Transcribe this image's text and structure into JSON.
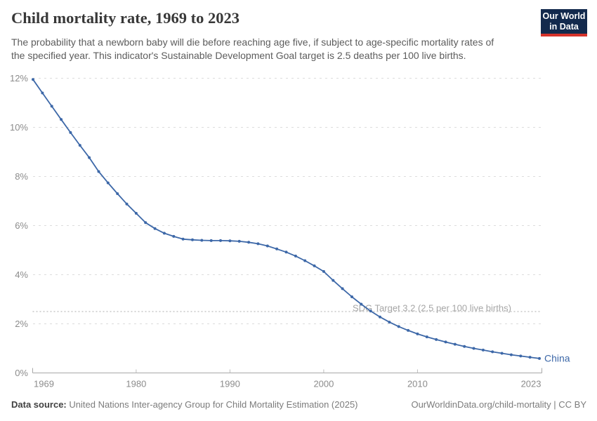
{
  "header": {
    "title": "Child mortality rate, 1969 to 2023",
    "subtitle_lines": [
      "The probability that a newborn baby will die before reaching age five, if subject to age-specific mortality rates of",
      "the specified year. This indicator's Sustainable Development Goal target is 2.5 deaths per 100 live births."
    ],
    "logo": {
      "line1": "Our World",
      "line2": "in Data",
      "bg_color": "#132a4d",
      "bar_color": "#d5332b"
    }
  },
  "chart_data": {
    "type": "line",
    "title": "Child mortality rate, 1969 to 2023",
    "xlabel": "",
    "ylabel": "",
    "xlim": [
      1969,
      2023
    ],
    "ylim": [
      0,
      12
    ],
    "xticks": [
      1969,
      1980,
      1990,
      2000,
      2010,
      2023
    ],
    "yticks": [
      0,
      2,
      4,
      6,
      8,
      10,
      12
    ],
    "ytick_suffix": "%",
    "grid": "dashed-horizontal",
    "legend_position": "end-of-line-label",
    "annotation": {
      "label": "SDG Target 3.2 (2.5 per 100 live births)",
      "value": 2.5,
      "style": "dotted"
    },
    "end_label": "China",
    "series": [
      {
        "name": "China",
        "color": "#3d68a8",
        "x": [
          1969,
          1970,
          1971,
          1972,
          1973,
          1974,
          1975,
          1976,
          1977,
          1978,
          1979,
          1980,
          1981,
          1982,
          1983,
          1984,
          1985,
          1986,
          1987,
          1988,
          1989,
          1990,
          1991,
          1992,
          1993,
          1994,
          1995,
          1996,
          1997,
          1998,
          1999,
          2000,
          2001,
          2002,
          2003,
          2004,
          2005,
          2006,
          2007,
          2008,
          2009,
          2010,
          2011,
          2012,
          2013,
          2014,
          2015,
          2016,
          2017,
          2018,
          2019,
          2020,
          2021,
          2022,
          2023
        ],
        "values": [
          11.95,
          11.4,
          10.86,
          10.32,
          9.79,
          9.27,
          8.77,
          8.2,
          7.74,
          7.3,
          6.88,
          6.5,
          6.12,
          5.88,
          5.69,
          5.56,
          5.45,
          5.42,
          5.4,
          5.39,
          5.39,
          5.38,
          5.36,
          5.32,
          5.26,
          5.17,
          5.05,
          4.92,
          4.76,
          4.57,
          4.36,
          4.13,
          3.77,
          3.43,
          3.1,
          2.8,
          2.52,
          2.28,
          2.07,
          1.89,
          1.73,
          1.59,
          1.47,
          1.36,
          1.26,
          1.17,
          1.08,
          1.0,
          0.93,
          0.86,
          0.8,
          0.74,
          0.69,
          0.64,
          0.59
        ]
      }
    ]
  },
  "footer": {
    "source_label": "Data source:",
    "source_text": "United Nations Inter-agency Group for Child Mortality Estimation (2025)",
    "link_text": "OurWorldinData.org/child-mortality",
    "separator": "|",
    "license_text": "CC BY"
  }
}
